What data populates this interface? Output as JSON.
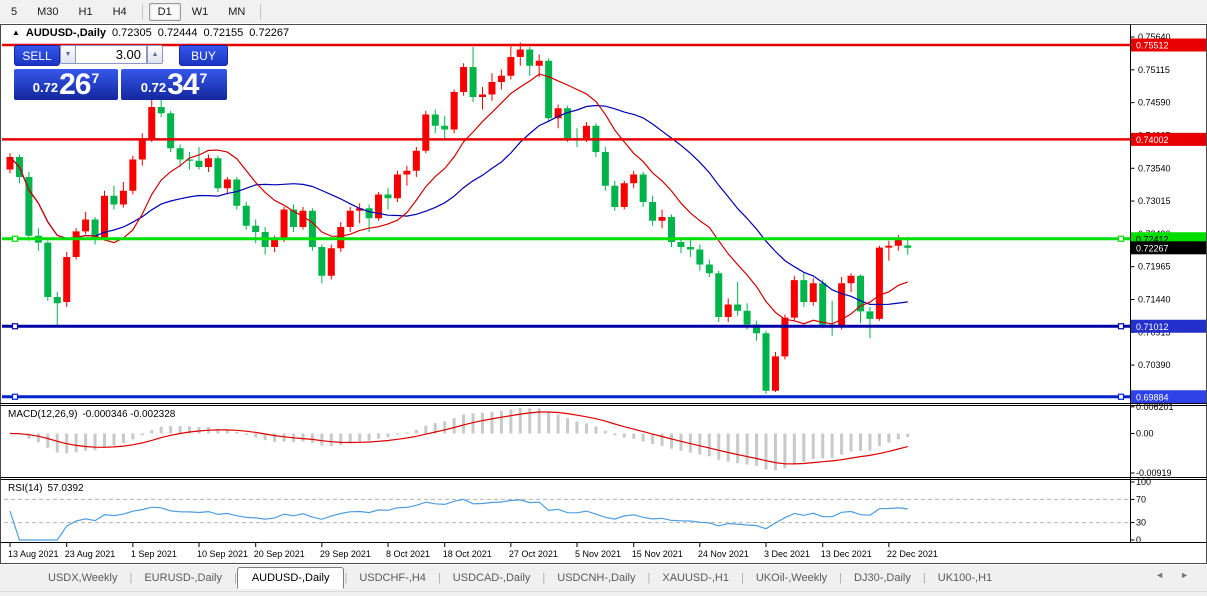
{
  "toolbar": {
    "timeframes": [
      "5",
      "M30",
      "H1",
      "H4",
      "D1",
      "W1",
      "MN"
    ],
    "active": "D1",
    "separator_after": [
      "H4",
      "MN"
    ]
  },
  "chart_title": {
    "collapse_icon": "▲",
    "symbol_label": "AUDUSD-,Daily",
    "open": "0.72305",
    "high": "0.72444",
    "low": "0.72155",
    "close": "0.72267"
  },
  "trade_panel": {
    "sell_label": "SELL",
    "buy_label": "BUY",
    "volume": "3.00",
    "spin_down_icon": "▼",
    "spin_up_icon": "▲",
    "sell_price": {
      "prefix": "0.72",
      "big": "26",
      "sup": "7"
    },
    "buy_price": {
      "prefix": "0.72",
      "big": "34",
      "sup": "7"
    }
  },
  "macd_panel": {
    "label": "MACD(12,26,9)",
    "values": "-0.000346 -0.002328",
    "axis": [
      {
        "text": "0.006201",
        "v": 0.006201
      },
      {
        "text": "0.00",
        "v": 0
      },
      {
        "text": "-0.00919",
        "v": -0.00919
      }
    ]
  },
  "rsi_panel": {
    "label": "RSI(14)",
    "value": "57.0392",
    "axis": [
      {
        "text": "100",
        "v": 100
      },
      {
        "text": "70",
        "v": 70
      },
      {
        "text": "30",
        "v": 30
      },
      {
        "text": "0",
        "v": 0
      }
    ],
    "dashed_levels": [
      70,
      30
    ]
  },
  "tabs": {
    "items": [
      "USDX,Weekly",
      "EURUSD-,Daily",
      "AUDUSD-,Daily",
      "USDCHF-,H4",
      "USDCAD-,Daily",
      "USDCNH-,Daily",
      "XAUUSD-,H1",
      "UKOil-,Weekly",
      "DJ30-,Daily",
      "UK100-,H1"
    ],
    "active": "AUDUSD-,Daily",
    "left_arrow": "◄",
    "right_arrow": "►"
  },
  "chart_data": {
    "type": "candlestick",
    "symbol": "AUDUSD-",
    "timeframe": "Daily",
    "colors": {
      "up": "#f80000",
      "down": "#00b44c",
      "ma_fast": "#d40000",
      "ma_slow": "#0000b8",
      "macd_bar": "#c9c9c9",
      "macd_signal": "#de0000",
      "rsi_line": "#4f9de0",
      "rsi_dash": "#b4b4b4"
    },
    "overlays": [
      {
        "name": "ma-fast",
        "type": "sma",
        "period": 10
      },
      {
        "name": "ma-slow",
        "type": "sma",
        "period": 21
      }
    ],
    "price_axis_ticks": [
      "0.75640",
      "0.75115",
      "0.74590",
      "0.74065",
      "0.73540",
      "0.73015",
      "0.72490",
      "0.71965",
      "0.71440",
      "0.70915",
      "0.70390",
      "0.69865"
    ],
    "badges": [
      {
        "text": "0.75512",
        "price": 0.75512,
        "bg": "#e80000",
        "fg": "#ffffff"
      },
      {
        "text": "0.74002",
        "price": 0.74002,
        "bg": "#e80000",
        "fg": "#ffffff"
      },
      {
        "text": "0.72412",
        "price": 0.72412,
        "bg": "#00dd00",
        "fg": "#000000"
      },
      {
        "text": "0.72267",
        "price": 0.72267,
        "bg": "#000000",
        "fg": "#ffffff"
      },
      {
        "text": "0.71012",
        "price": 0.71012,
        "bg": "#2330cc",
        "fg": "#ffffff"
      },
      {
        "text": "0.69884",
        "price": 0.69884,
        "bg": "#2e42e8",
        "fg": "#ffffff"
      }
    ],
    "levels": [
      {
        "price": 0.75512,
        "color": "#e80000",
        "width": 2.5,
        "handles": false
      },
      {
        "price": 0.74002,
        "color": "#e80000",
        "width": 2.5,
        "handles": false
      },
      {
        "price": 0.72412,
        "color": "#00e004",
        "width": 3,
        "handles": true
      },
      {
        "price": 0.71012,
        "color": "#0000a8",
        "width": 3,
        "handles": true
      },
      {
        "price": 0.69884,
        "color": "#0024d4",
        "width": 3,
        "handles": true
      }
    ],
    "current_price": 0.72267,
    "x_labels": [
      {
        "text": "13 Aug 2021",
        "index": 0
      },
      {
        "text": "23 Aug 2021",
        "index": 6
      },
      {
        "text": "1 Sep 2021",
        "index": 13
      },
      {
        "text": "10 Sep 2021",
        "index": 20
      },
      {
        "text": "20 Sep 2021",
        "index": 26
      },
      {
        "text": "29 Sep 2021",
        "index": 33
      },
      {
        "text": "8 Oct 2021",
        "index": 40
      },
      {
        "text": "18 Oct 2021",
        "index": 46
      },
      {
        "text": "27 Oct 2021",
        "index": 53
      },
      {
        "text": "5 Nov 2021",
        "index": 60
      },
      {
        "text": "15 Nov 2021",
        "index": 66
      },
      {
        "text": "24 Nov 2021",
        "index": 73
      },
      {
        "text": "3 Dec 2021",
        "index": 80
      },
      {
        "text": "13 Dec 2021",
        "index": 86
      },
      {
        "text": "22 Dec 2021",
        "index": 93
      }
    ],
    "candles": [
      [
        "2021-08-13",
        0.7352,
        0.7378,
        0.7346,
        0.7372
      ],
      [
        "2021-08-16",
        0.7372,
        0.7376,
        0.733,
        0.734
      ],
      [
        "2021-08-17",
        0.734,
        0.7348,
        0.7238,
        0.7246
      ],
      [
        "2021-08-18",
        0.7246,
        0.7258,
        0.7222,
        0.7235
      ],
      [
        "2021-08-19",
        0.7235,
        0.7238,
        0.7142,
        0.7148
      ],
      [
        "2021-08-20",
        0.7148,
        0.7156,
        0.7102,
        0.7138
      ],
      [
        "2021-08-23",
        0.714,
        0.722,
        0.7132,
        0.7212
      ],
      [
        "2021-08-24",
        0.7212,
        0.7258,
        0.7208,
        0.7253
      ],
      [
        "2021-08-25",
        0.7253,
        0.7284,
        0.7248,
        0.7272
      ],
      [
        "2021-08-26",
        0.7272,
        0.7276,
        0.7232,
        0.724
      ],
      [
        "2021-08-27",
        0.724,
        0.7318,
        0.7238,
        0.731
      ],
      [
        "2021-08-30",
        0.731,
        0.7326,
        0.7288,
        0.7296
      ],
      [
        "2021-08-31",
        0.7296,
        0.7332,
        0.7291,
        0.7318
      ],
      [
        "2021-09-01",
        0.7318,
        0.7374,
        0.7312,
        0.7368
      ],
      [
        "2021-09-02",
        0.7368,
        0.741,
        0.7358,
        0.74
      ],
      [
        "2021-09-03",
        0.74,
        0.7478,
        0.7396,
        0.7452
      ],
      [
        "2021-09-06",
        0.7452,
        0.7468,
        0.7436,
        0.7442
      ],
      [
        "2021-09-07",
        0.7442,
        0.7446,
        0.738,
        0.7386
      ],
      [
        "2021-09-08",
        0.7386,
        0.7392,
        0.7356,
        0.7368
      ],
      [
        "2021-09-09",
        0.7368,
        0.738,
        0.7352,
        0.7366
      ],
      [
        "2021-09-10",
        0.7366,
        0.7388,
        0.7352,
        0.7356
      ],
      [
        "2021-09-13",
        0.7356,
        0.7376,
        0.7348,
        0.737
      ],
      [
        "2021-09-14",
        0.737,
        0.7374,
        0.7316,
        0.7322
      ],
      [
        "2021-09-15",
        0.7322,
        0.734,
        0.7312,
        0.7336
      ],
      [
        "2021-09-16",
        0.7336,
        0.734,
        0.7288,
        0.7294
      ],
      [
        "2021-09-17",
        0.7294,
        0.73,
        0.7256,
        0.7262
      ],
      [
        "2021-09-20",
        0.7262,
        0.7272,
        0.7234,
        0.7252
      ],
      [
        "2021-09-21",
        0.7252,
        0.726,
        0.7216,
        0.7228
      ],
      [
        "2021-09-22",
        0.7228,
        0.7246,
        0.722,
        0.724
      ],
      [
        "2021-09-23",
        0.724,
        0.7292,
        0.7236,
        0.7288
      ],
      [
        "2021-09-24",
        0.7288,
        0.7296,
        0.7252,
        0.726
      ],
      [
        "2021-09-27",
        0.726,
        0.7292,
        0.7256,
        0.7286
      ],
      [
        "2021-09-28",
        0.7286,
        0.729,
        0.7222,
        0.7228
      ],
      [
        "2021-09-29",
        0.7228,
        0.7232,
        0.717,
        0.7182
      ],
      [
        "2021-09-30",
        0.7182,
        0.7232,
        0.7176,
        0.7226
      ],
      [
        "2021-10-01",
        0.7226,
        0.7268,
        0.722,
        0.726
      ],
      [
        "2021-10-04",
        0.726,
        0.7292,
        0.7252,
        0.7286
      ],
      [
        "2021-10-05",
        0.7286,
        0.7298,
        0.7266,
        0.729
      ],
      [
        "2021-10-06",
        0.729,
        0.7296,
        0.7252,
        0.7274
      ],
      [
        "2021-10-07",
        0.7274,
        0.7316,
        0.727,
        0.7312
      ],
      [
        "2021-10-08",
        0.7312,
        0.7322,
        0.7288,
        0.7306
      ],
      [
        "2021-10-11",
        0.7306,
        0.735,
        0.73,
        0.7344
      ],
      [
        "2021-10-12",
        0.7344,
        0.7358,
        0.7326,
        0.735
      ],
      [
        "2021-10-13",
        0.735,
        0.7388,
        0.734,
        0.7382
      ],
      [
        "2021-10-14",
        0.7382,
        0.7446,
        0.7378,
        0.744
      ],
      [
        "2021-10-15",
        0.744,
        0.7448,
        0.741,
        0.7422
      ],
      [
        "2021-10-18",
        0.7422,
        0.7438,
        0.7402,
        0.7416
      ],
      [
        "2021-10-19",
        0.7416,
        0.748,
        0.741,
        0.7476
      ],
      [
        "2021-10-20",
        0.7476,
        0.7522,
        0.747,
        0.7516
      ],
      [
        "2021-10-21",
        0.7516,
        0.7548,
        0.746,
        0.7468
      ],
      [
        "2021-10-22",
        0.7468,
        0.7484,
        0.7448,
        0.7472
      ],
      [
        "2021-10-25",
        0.7472,
        0.7506,
        0.7462,
        0.7492
      ],
      [
        "2021-10-26",
        0.7492,
        0.7512,
        0.748,
        0.7502
      ],
      [
        "2021-10-27",
        0.7502,
        0.755,
        0.7496,
        0.7532
      ],
      [
        "2021-10-28",
        0.7532,
        0.7555,
        0.7518,
        0.7544
      ],
      [
        "2021-10-29",
        0.7544,
        0.7548,
        0.7502,
        0.7518
      ],
      [
        "2021-11-01",
        0.7518,
        0.7536,
        0.75,
        0.7526
      ],
      [
        "2021-11-02",
        0.7526,
        0.753,
        0.7428,
        0.7434
      ],
      [
        "2021-11-03",
        0.7434,
        0.7456,
        0.7418,
        0.745
      ],
      [
        "2021-11-04",
        0.745,
        0.7454,
        0.7396,
        0.7402
      ],
      [
        "2021-11-05",
        0.7402,
        0.7418,
        0.7388,
        0.74
      ],
      [
        "2021-11-08",
        0.74,
        0.7428,
        0.7396,
        0.7422
      ],
      [
        "2021-11-09",
        0.7422,
        0.7426,
        0.7372,
        0.738
      ],
      [
        "2021-11-10",
        0.738,
        0.7388,
        0.7318,
        0.7326
      ],
      [
        "2021-11-11",
        0.7326,
        0.7334,
        0.7286,
        0.7292
      ],
      [
        "2021-11-12",
        0.7292,
        0.7334,
        0.7288,
        0.733
      ],
      [
        "2021-11-15",
        0.733,
        0.735,
        0.7322,
        0.7344
      ],
      [
        "2021-11-16",
        0.7344,
        0.7348,
        0.7292,
        0.73
      ],
      [
        "2021-11-17",
        0.73,
        0.731,
        0.7262,
        0.727
      ],
      [
        "2021-11-18",
        0.727,
        0.7288,
        0.7258,
        0.7276
      ],
      [
        "2021-11-19",
        0.7276,
        0.728,
        0.7228,
        0.7236
      ],
      [
        "2021-11-22",
        0.7236,
        0.7244,
        0.7218,
        0.7228
      ],
      [
        "2021-11-23",
        0.7228,
        0.7244,
        0.7212,
        0.7224
      ],
      [
        "2021-11-24",
        0.7224,
        0.7232,
        0.719,
        0.72
      ],
      [
        "2021-11-25",
        0.72,
        0.7208,
        0.718,
        0.7186
      ],
      [
        "2021-11-26",
        0.7186,
        0.719,
        0.7108,
        0.7116
      ],
      [
        "2021-11-29",
        0.7116,
        0.7146,
        0.7108,
        0.7136
      ],
      [
        "2021-11-30",
        0.7136,
        0.7172,
        0.7118,
        0.7126
      ],
      [
        "2021-12-01",
        0.7126,
        0.7138,
        0.7096,
        0.7104
      ],
      [
        "2021-12-02",
        0.7104,
        0.711,
        0.7078,
        0.709
      ],
      [
        "2021-12-03",
        0.709,
        0.7094,
        0.6993,
        0.6998
      ],
      [
        "2021-12-06",
        0.6998,
        0.706,
        0.6996,
        0.7053
      ],
      [
        "2021-12-07",
        0.7053,
        0.712,
        0.7048,
        0.7115
      ],
      [
        "2021-12-08",
        0.7115,
        0.7182,
        0.711,
        0.7175
      ],
      [
        "2021-12-09",
        0.7175,
        0.7186,
        0.7132,
        0.714
      ],
      [
        "2021-12-10",
        0.714,
        0.7178,
        0.7134,
        0.717
      ],
      [
        "2021-12-13",
        0.717,
        0.7176,
        0.7098,
        0.7104
      ],
      [
        "2021-12-14",
        0.7104,
        0.7142,
        0.7086,
        0.7103
      ],
      [
        "2021-12-15",
        0.7103,
        0.718,
        0.7096,
        0.717
      ],
      [
        "2021-12-16",
        0.717,
        0.7186,
        0.7156,
        0.7182
      ],
      [
        "2021-12-17",
        0.7182,
        0.7184,
        0.7106,
        0.7125
      ],
      [
        "2021-12-20",
        0.7125,
        0.7132,
        0.7082,
        0.7113
      ],
      [
        "2021-12-21",
        0.7113,
        0.723,
        0.711,
        0.7227
      ],
      [
        "2021-12-22",
        0.7227,
        0.7238,
        0.7206,
        0.723
      ],
      [
        "2021-12-23",
        0.723,
        0.7247,
        0.7222,
        0.7241
      ],
      [
        "2021-12-24",
        0.72305,
        0.72444,
        0.72155,
        0.72267
      ]
    ]
  }
}
